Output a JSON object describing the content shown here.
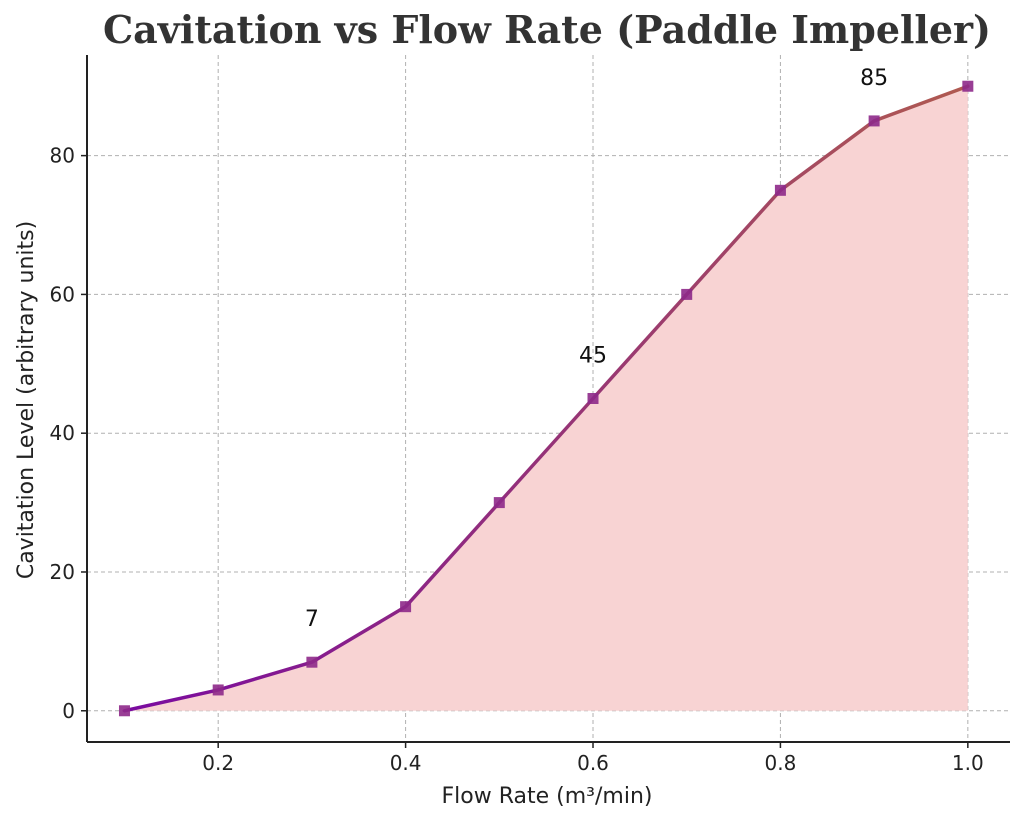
{
  "chart_data": {
    "type": "line",
    "title": "Cavitation vs Flow Rate (Paddle Impeller)",
    "xlabel": "Flow Rate (m³/min)",
    "ylabel": "Cavitation Level (arbitrary units)",
    "x": [
      0.1,
      0.2,
      0.3,
      0.4,
      0.5,
      0.6,
      0.7,
      0.8,
      0.9,
      1.0
    ],
    "series": [
      {
        "values": [
          0,
          3,
          7,
          15,
          30,
          45,
          60,
          75,
          85,
          90
        ]
      }
    ],
    "xlim": [
      0.06,
      1.045
    ],
    "ylim": [
      -4.5,
      94.5
    ],
    "xticks": [
      0.2,
      0.4,
      0.6,
      0.8,
      1.0
    ],
    "xtick_labels": [
      "0.2",
      "0.4",
      "0.6",
      "0.8",
      "1.0"
    ],
    "yticks": [
      0,
      20,
      40,
      60,
      80
    ],
    "ytick_labels": [
      "0",
      "20",
      "40",
      "60",
      "80"
    ],
    "annotations": [
      {
        "x": 0.3,
        "y": 7,
        "text": "7"
      },
      {
        "x": 0.6,
        "y": 45,
        "text": "45"
      },
      {
        "x": 0.9,
        "y": 85,
        "text": "85"
      }
    ],
    "grid": true,
    "fill_under_line": true,
    "colors": {
      "line_start": "#7a0aa0",
      "line_end": "#b05a50",
      "marker": "#8e2a8a",
      "fill": "#f8d3d3",
      "axes": "#222222",
      "grid": "#b0b0b0"
    }
  }
}
